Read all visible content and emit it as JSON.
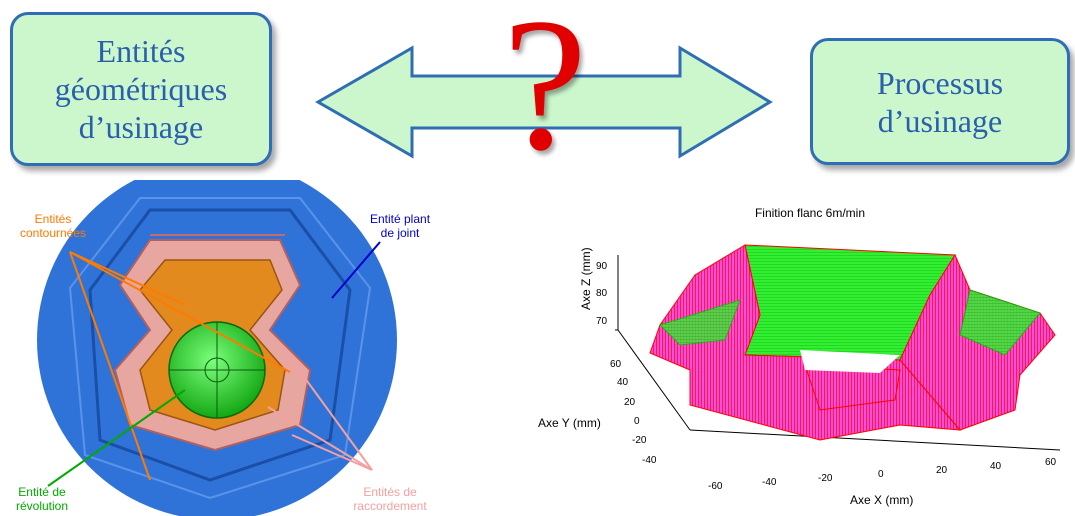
{
  "top": {
    "left_box": "Entités\ngéométriques\nd’usinage",
    "right_box": "Processus\nd’usinage",
    "question_mark": "?"
  },
  "part_labels": {
    "contour_a": "Entités ",
    "contour_b": "contournées",
    "joint_a": "Entité ",
    "joint_b": "plant",
    "joint_c": "de joint",
    "revolution_a": "Entité ",
    "revolution_b": "de",
    "revolution_c": "révolution",
    "raccord_a": "Entités de",
    "raccord_b": "raccordement"
  },
  "plot": {
    "title": "Finition flanc 6m/min",
    "zlabel": "Axe Z (mm)",
    "ylabel": "Axe Y (mm)",
    "xlabel": "Axe X (mm)",
    "zticks": [
      "90",
      "80",
      "70"
    ],
    "yticks": [
      "60",
      "40",
      "20",
      "0",
      "-20",
      "-40"
    ],
    "xticks": [
      "-60",
      "-40",
      "-20",
      "0",
      "20",
      "40",
      "60"
    ]
  },
  "colors": {
    "box_fill": "#ccf7cc",
    "box_border": "#2f6db5",
    "question": "#e00000",
    "contour": "#ff7a00",
    "joint": "#0000cc",
    "revolution": "#00aa00",
    "raccord": "#f4a0a0"
  }
}
